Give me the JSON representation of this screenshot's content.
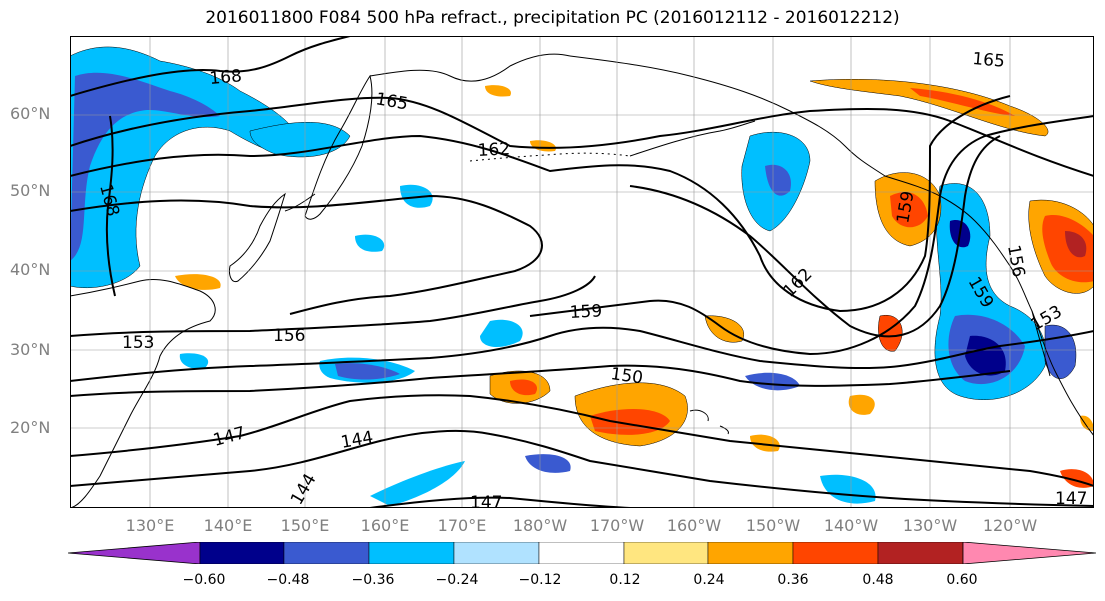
{
  "title": "2016011800 F084 500 hPa refract., precipitation PC (2016012112 - 2016012212)",
  "lat_labels": [
    "60°N",
    "50°N",
    "40°N",
    "30°N",
    "20°N"
  ],
  "lon_labels": [
    "130°E",
    "140°E",
    "150°E",
    "160°E",
    "170°E",
    "180°W",
    "170°W",
    "160°W",
    "150°W",
    "140°W",
    "130°W",
    "120°W"
  ],
  "contour_labels": [
    "168",
    "165",
    "162",
    "168",
    "159",
    "156",
    "153",
    "150",
    "147",
    "144",
    "147",
    "162",
    "159",
    "165",
    "159",
    "156",
    "153",
    "147",
    "144"
  ],
  "colorbar": {
    "ticks": [
      "−0.60",
      "−0.48",
      "−0.36",
      "−0.24",
      "−0.12",
      "0.12",
      "0.24",
      "0.36",
      "0.48",
      "0.60"
    ],
    "colors": [
      "#9932CC",
      "#00008B",
      "#3A5AD0",
      "#00BFFF",
      "#B0E2FF",
      "#FFFFFF",
      "#FFE680",
      "#FFA500",
      "#FF4500",
      "#B22222",
      "#FF88B0"
    ]
  },
  "colors": {
    "neg_strong": "#00008B",
    "neg_mid": "#3A5AD0",
    "neg_light": "#00BFFF",
    "neg_faint": "#B0E2FF",
    "pos_faint": "#FFE680",
    "pos_mid": "#FFA500",
    "pos_strong": "#FF4500",
    "pos_max": "#B22222",
    "pos_extreme": "#FF88B0"
  }
}
